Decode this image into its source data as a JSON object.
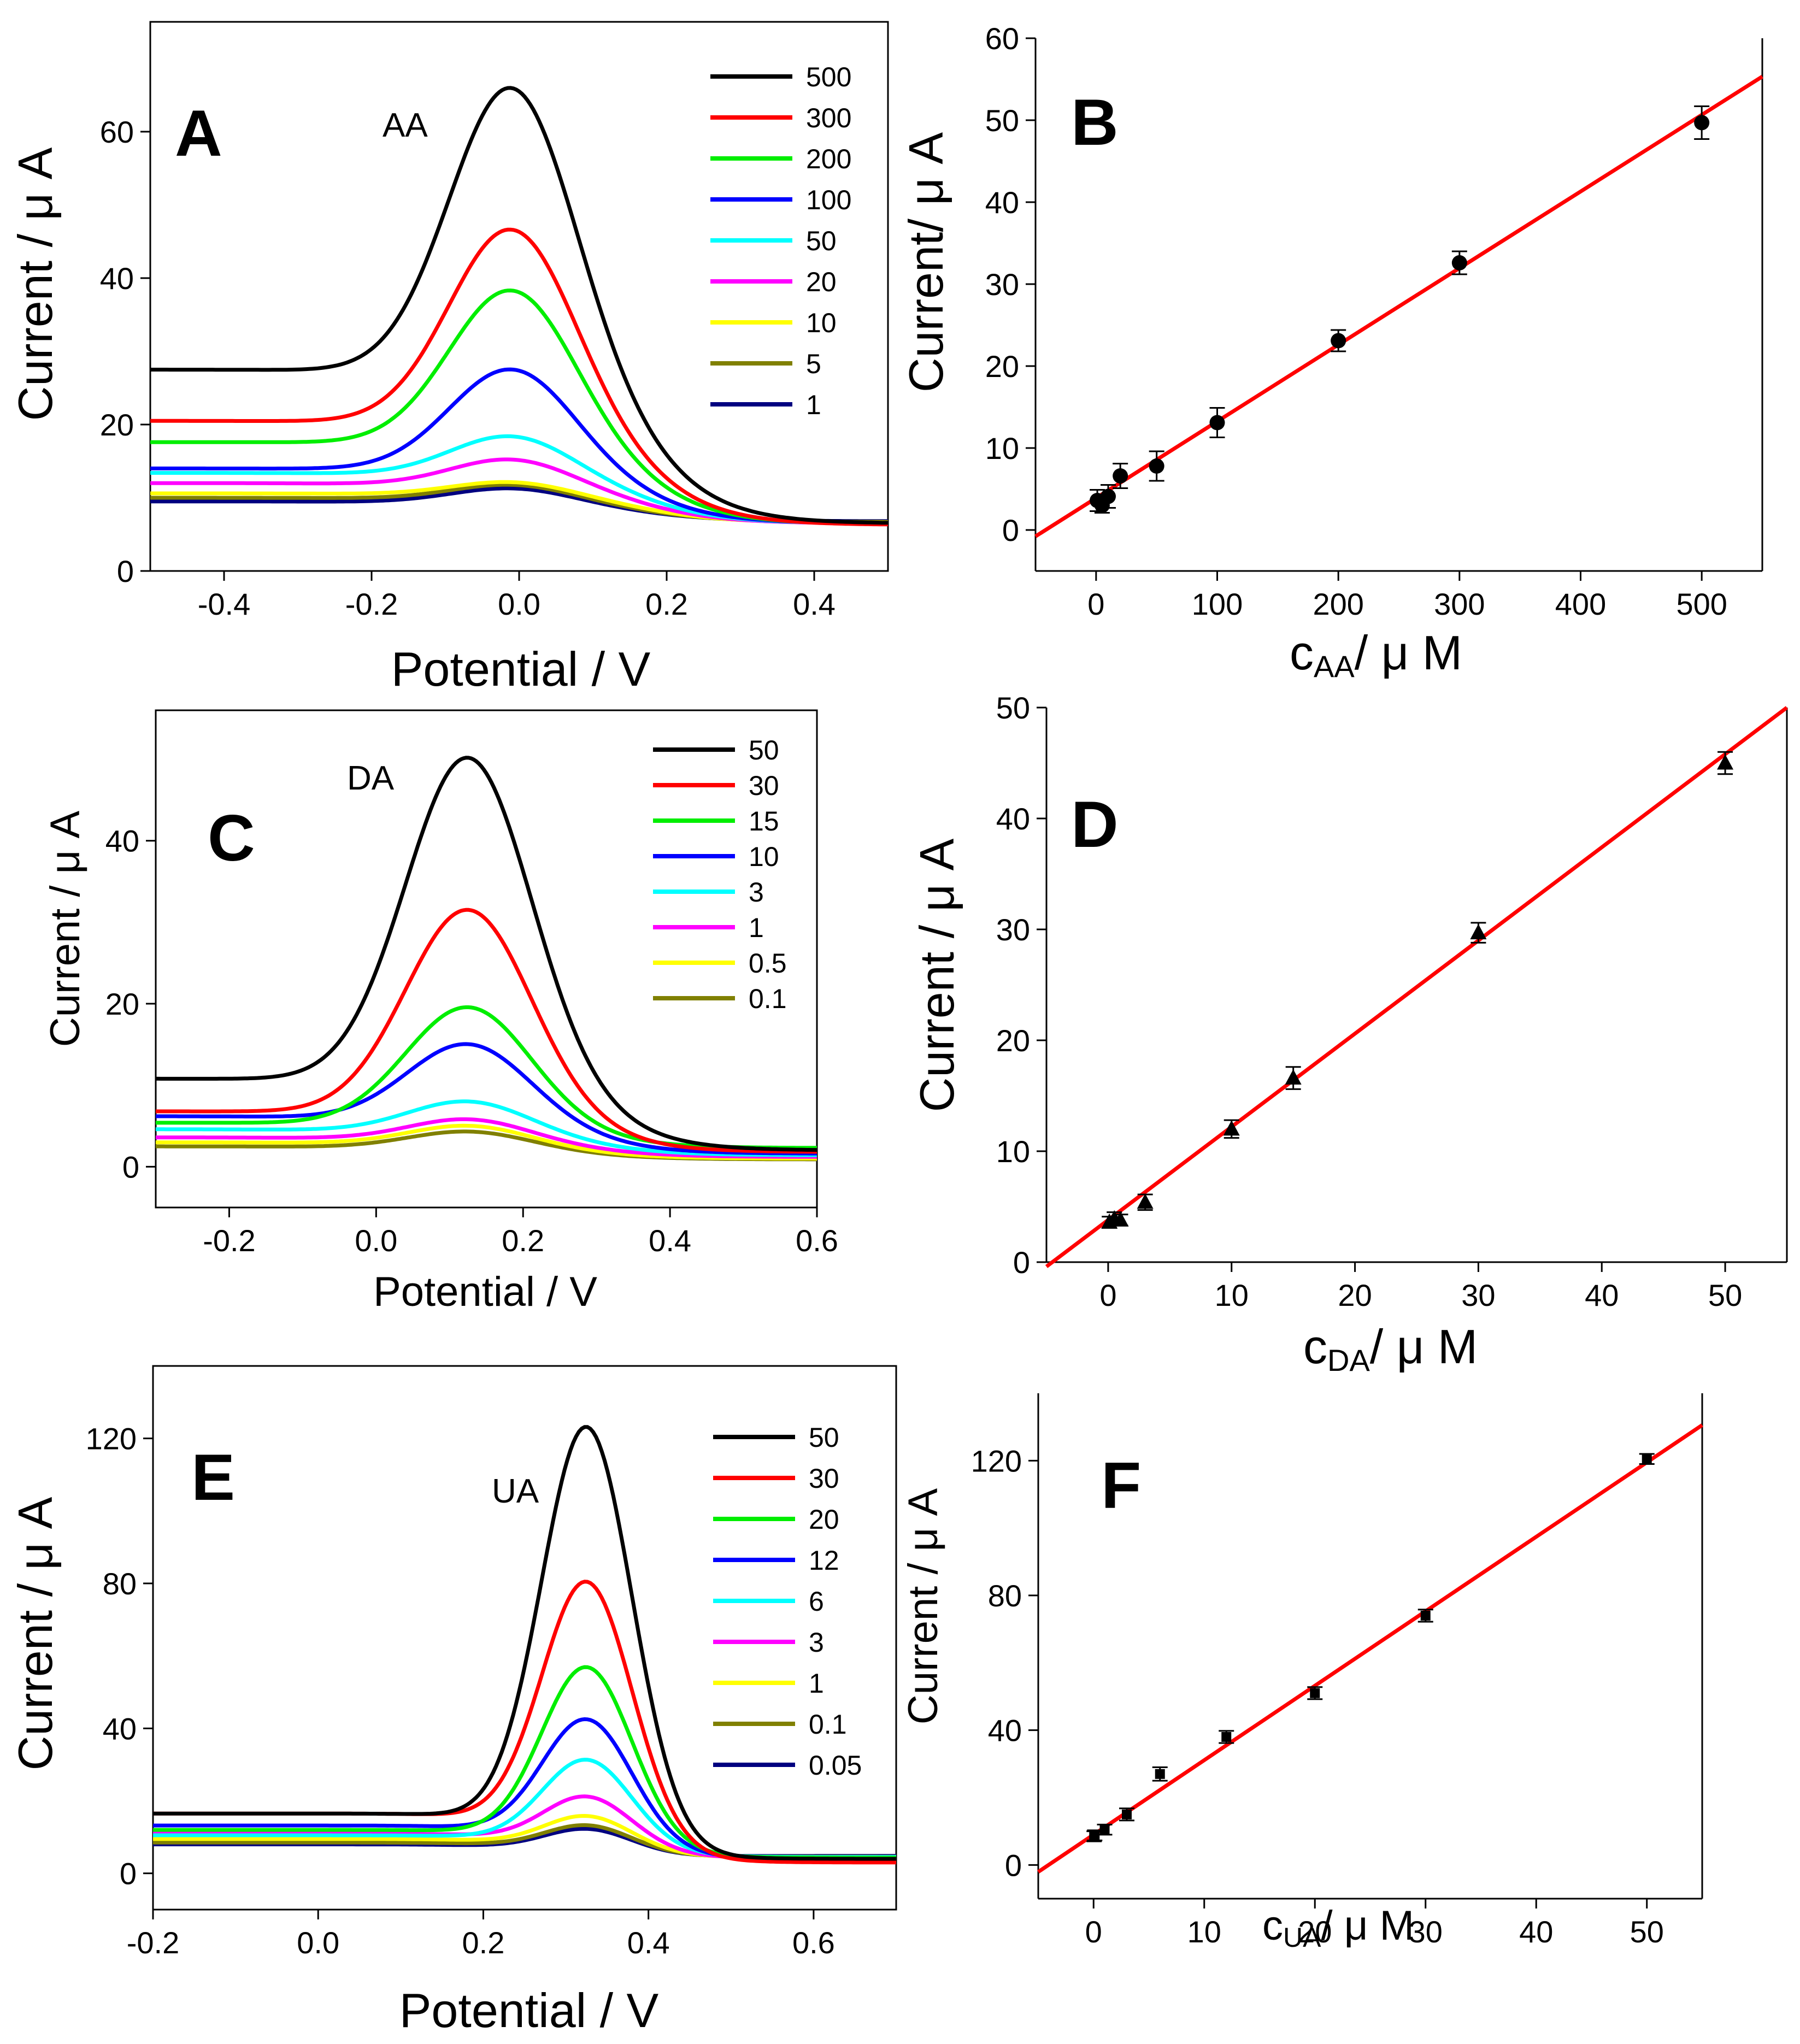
{
  "figure": {
    "panels": [
      {
        "letter": "A",
        "analyte": "AA",
        "ylabel": "Current / μ A",
        "xlabel": "Potential / V"
      },
      {
        "letter": "B",
        "ylabel": "Current/  μ A",
        "xlabel_main": "c",
        "xlabel_sub": "AA",
        "xlabel_tail": "/  μ M"
      },
      {
        "letter": "C",
        "analyte": "DA",
        "ylabel": "Current / μ A",
        "xlabel": "Potential / V"
      },
      {
        "letter": "D",
        "ylabel": "Current /  μ A",
        "xlabel_main": "c",
        "xlabel_sub": "DA",
        "xlabel_tail": "/  μ M"
      },
      {
        "letter": "E",
        "analyte": "UA",
        "ylabel": "Current /  μ A",
        "xlabel": "Potential / V"
      },
      {
        "letter": "F",
        "ylabel": "Current / μ A",
        "xlabel_main": "c",
        "xlabel_sub": "UA",
        "xlabel_tail": "/  μ M"
      }
    ]
  },
  "chart_data": [
    {
      "id": "A",
      "type": "line",
      "title": "A",
      "xlabel": "Potential / V",
      "ylabel": "Current / μ A",
      "xlim": [
        -0.5,
        0.5
      ],
      "ylim": [
        0,
        75
      ],
      "xticks": [
        -0.4,
        -0.2,
        0.0,
        0.2,
        0.4
      ],
      "yticks": [
        0,
        20,
        40,
        60
      ],
      "xtick_labels": [
        "-0.4",
        "-0.2",
        "0.0",
        "0.2",
        "0.4"
      ],
      "ytick_labels": [
        "0",
        "20",
        "40",
        "60"
      ],
      "annotation": "AA",
      "peak_center": -0.01,
      "peak_width": 0.085,
      "series": [
        {
          "name": "500",
          "color": "#000000",
          "baseline": 27.5,
          "peak": 66.5,
          "tail": 6.5,
          "dip": 24.8
        },
        {
          "name": "300",
          "color": "#ff0000",
          "baseline": 20.5,
          "peak": 47.0,
          "tail": 6.3,
          "dip": 18.8
        },
        {
          "name": "200",
          "color": "#00ee00",
          "baseline": 17.6,
          "peak": 38.6,
          "tail": 6.4,
          "dip": 16.2
        },
        {
          "name": "100",
          "color": "#0000ff",
          "baseline": 14.0,
          "peak": 27.7,
          "tail": 6.5,
          "dip": 12.9
        },
        {
          "name": "50",
          "color": "#00ffff",
          "baseline": 13.4,
          "peak": 18.5,
          "tail": 6.5,
          "dip": 12.0
        },
        {
          "name": "20",
          "color": "#ff00ff",
          "baseline": 12.0,
          "peak": 15.3,
          "tail": 6.5,
          "dip": 10.8
        },
        {
          "name": "10",
          "color": "#ffff00",
          "baseline": 10.6,
          "peak": 12.2,
          "tail": 6.6,
          "dip": 9.8
        },
        {
          "name": "5",
          "color": "#808000",
          "baseline": 10.0,
          "peak": 11.8,
          "tail": 6.7,
          "dip": 9.2
        },
        {
          "name": "1",
          "color": "#000080",
          "baseline": 9.5,
          "peak": 11.3,
          "tail": 6.8,
          "dip": 8.8
        }
      ]
    },
    {
      "id": "B",
      "type": "scatter",
      "title": "B",
      "xlabel": "c_AA /  μ M",
      "ylabel": "Current/  μ A",
      "xlim": [
        -50,
        550
      ],
      "ylim": [
        -5,
        60
      ],
      "xticks": [
        0,
        100,
        200,
        300,
        400,
        500
      ],
      "yticks": [
        0,
        10,
        20,
        30,
        40,
        50,
        60
      ],
      "xtick_labels": [
        "0",
        "100",
        "200",
        "300",
        "400",
        "500"
      ],
      "ytick_labels": [
        "0",
        "10",
        "20",
        "30",
        "40",
        "50",
        "60"
      ],
      "marker": "circle",
      "points": [
        {
          "x": 1,
          "y": 3.6,
          "err": 1.3
        },
        {
          "x": 5,
          "y": 3.0,
          "err": 0.9
        },
        {
          "x": 10,
          "y": 4.1,
          "err": 1.4
        },
        {
          "x": 20,
          "y": 6.6,
          "err": 1.5
        },
        {
          "x": 50,
          "y": 7.8,
          "err": 1.8
        },
        {
          "x": 100,
          "y": 13.1,
          "err": 1.8
        },
        {
          "x": 200,
          "y": 23.1,
          "err": 1.3
        },
        {
          "x": 300,
          "y": 32.6,
          "err": 1.4
        },
        {
          "x": 500,
          "y": 49.7,
          "err": 2.0
        }
      ],
      "fit": {
        "slope": 0.0935,
        "intercept": 3.9,
        "color": "#ff0000",
        "x_from": -50,
        "x_to": 550
      }
    },
    {
      "id": "C",
      "type": "line",
      "title": "C",
      "xlabel": "Potential / V",
      "ylabel": "Current / μ A",
      "xlim": [
        -0.3,
        0.6
      ],
      "ylim": [
        -5,
        56
      ],
      "xticks": [
        -0.2,
        0.0,
        0.2,
        0.4,
        0.6
      ],
      "yticks": [
        0,
        20,
        40
      ],
      "xtick_labels": [
        "-0.2",
        "0.0",
        "0.2",
        "0.4",
        "0.6"
      ],
      "ytick_labels": [
        "0",
        "20",
        "40"
      ],
      "annotation": "DA",
      "peak_center": 0.125,
      "peak_width": 0.085,
      "series": [
        {
          "name": "50",
          "color": "#000000",
          "baseline": 10.8,
          "peak": 50.4,
          "tail": 2.0,
          "dip": 9.6
        },
        {
          "name": "30",
          "color": "#ff0000",
          "baseline": 6.8,
          "peak": 31.6,
          "tail": 1.8,
          "dip": 5.8
        },
        {
          "name": "15",
          "color": "#00ee00",
          "baseline": 5.4,
          "peak": 19.6,
          "tail": 2.3,
          "dip": 4.6
        },
        {
          "name": "10",
          "color": "#0000ff",
          "baseline": 6.2,
          "peak": 15.0,
          "tail": 1.6,
          "dip": 4.3
        },
        {
          "name": "3",
          "color": "#00ffff",
          "baseline": 4.6,
          "peak": 8.0,
          "tail": 1.4,
          "dip": 3.4
        },
        {
          "name": "1",
          "color": "#ff00ff",
          "baseline": 3.6,
          "peak": 5.8,
          "tail": 1.2,
          "dip": 2.6
        },
        {
          "name": "0.5",
          "color": "#ffff00",
          "baseline": 3.0,
          "peak": 5.0,
          "tail": 1.0,
          "dip": 2.1
        },
        {
          "name": "0.1",
          "color": "#808000",
          "baseline": 2.5,
          "peak": 4.3,
          "tail": 0.9,
          "dip": 1.8
        }
      ]
    },
    {
      "id": "D",
      "type": "scatter",
      "title": "D",
      "xlabel": "c_DA /  μ M",
      "ylabel": "Current /  μ A",
      "xlim": [
        -5,
        55
      ],
      "ylim": [
        0,
        50
      ],
      "xticks": [
        0,
        10,
        20,
        30,
        40,
        50
      ],
      "yticks": [
        0,
        10,
        20,
        30,
        40,
        50
      ],
      "xtick_labels": [
        "0",
        "10",
        "20",
        "30",
        "40",
        "50"
      ],
      "ytick_labels": [
        "0",
        "10",
        "20",
        "30",
        "40",
        "50"
      ],
      "marker": "triangle",
      "points": [
        {
          "x": 0.1,
          "y": 3.6,
          "err": 0.5
        },
        {
          "x": 0.5,
          "y": 3.9,
          "err": 0.6
        },
        {
          "x": 1,
          "y": 3.8,
          "err": 0.5
        },
        {
          "x": 3,
          "y": 5.4,
          "err": 0.7
        },
        {
          "x": 10,
          "y": 12.0,
          "err": 0.8
        },
        {
          "x": 15,
          "y": 16.6,
          "err": 1.0
        },
        {
          "x": 30,
          "y": 29.7,
          "err": 0.9
        },
        {
          "x": 50,
          "y": 45.0,
          "err": 1.0
        }
      ],
      "fit": {
        "slope": 0.84,
        "intercept": 3.8,
        "color": "#ff0000",
        "x_from": -5,
        "x_to": 55
      }
    },
    {
      "id": "E",
      "type": "line",
      "title": "E",
      "xlabel": "Potential / V",
      "ylabel": "Current /  μ A",
      "xlim": [
        -0.2,
        0.7
      ],
      "ylim": [
        -10,
        140
      ],
      "xticks": [
        -0.2,
        0.0,
        0.2,
        0.4,
        0.6
      ],
      "yticks": [
        0,
        40,
        80,
        120
      ],
      "xtick_labels": [
        "-0.2",
        "0.0",
        "0.2",
        "0.4",
        "0.6"
      ],
      "ytick_labels": [
        "0",
        "40",
        "80",
        "120"
      ],
      "annotation": "UA",
      "peak_center": 0.325,
      "peak_width": 0.055,
      "series": [
        {
          "name": "50",
          "color": "#000000",
          "baseline": 16.5,
          "peak": 122.5,
          "tail": 4.0,
          "dip": 6.5
        },
        {
          "name": "30",
          "color": "#ff0000",
          "baseline": 16.5,
          "peak": 79.8,
          "tail": 3.0,
          "dip": 6.3
        },
        {
          "name": "20",
          "color": "#00ee00",
          "baseline": 12.0,
          "peak": 56.5,
          "tail": 4.3,
          "dip": 6.0
        },
        {
          "name": "12",
          "color": "#0000ff",
          "baseline": 13.2,
          "peak": 42.0,
          "tail": 4.1,
          "dip": 5.8
        },
        {
          "name": "6",
          "color": "#00ffff",
          "baseline": 10.5,
          "peak": 31.0,
          "tail": 4.5,
          "dip": 5.5
        },
        {
          "name": "3",
          "color": "#ff00ff",
          "baseline": 11.0,
          "peak": 20.8,
          "tail": 4.2,
          "dip": 5.3
        },
        {
          "name": "1",
          "color": "#ffff00",
          "baseline": 9.5,
          "peak": 15.5,
          "tail": 4.4,
          "dip": 5.0
        },
        {
          "name": "0.1",
          "color": "#808000",
          "baseline": 8.5,
          "peak": 13.0,
          "tail": 4.6,
          "dip": 4.8
        },
        {
          "name": "0.05",
          "color": "#000080",
          "baseline": 8.0,
          "peak": 12.0,
          "tail": 4.8,
          "dip": 4.6
        }
      ]
    },
    {
      "id": "F",
      "type": "scatter",
      "title": "F",
      "xlabel": "c_UA /  μ M",
      "ylabel": "Current / μ A",
      "xlim": [
        -5,
        55
      ],
      "ylim": [
        -10,
        140
      ],
      "xticks": [
        0,
        10,
        20,
        30,
        40,
        50
      ],
      "yticks": [
        0,
        40,
        80,
        120
      ],
      "xtick_labels": [
        "0",
        "10",
        "20",
        "30",
        "40",
        "50"
      ],
      "ytick_labels": [
        "0",
        "40",
        "80",
        "120"
      ],
      "marker": "square",
      "points": [
        {
          "x": 0.05,
          "y": 8.5,
          "err": 1.5
        },
        {
          "x": 0.1,
          "y": 8.8,
          "err": 1.5
        },
        {
          "x": 1,
          "y": 10.5,
          "err": 1.5
        },
        {
          "x": 3,
          "y": 15.0,
          "err": 1.8
        },
        {
          "x": 6,
          "y": 27.0,
          "err": 2.0
        },
        {
          "x": 12,
          "y": 38.0,
          "err": 1.8
        },
        {
          "x": 20,
          "y": 51.0,
          "err": 1.8
        },
        {
          "x": 30,
          "y": 74.0,
          "err": 1.8
        },
        {
          "x": 50,
          "y": 120.5,
          "err": 1.5
        }
      ],
      "fit": {
        "slope": 2.21,
        "intercept": 9.0,
        "color": "#ff0000",
        "x_from": -5,
        "x_to": 55
      }
    }
  ]
}
